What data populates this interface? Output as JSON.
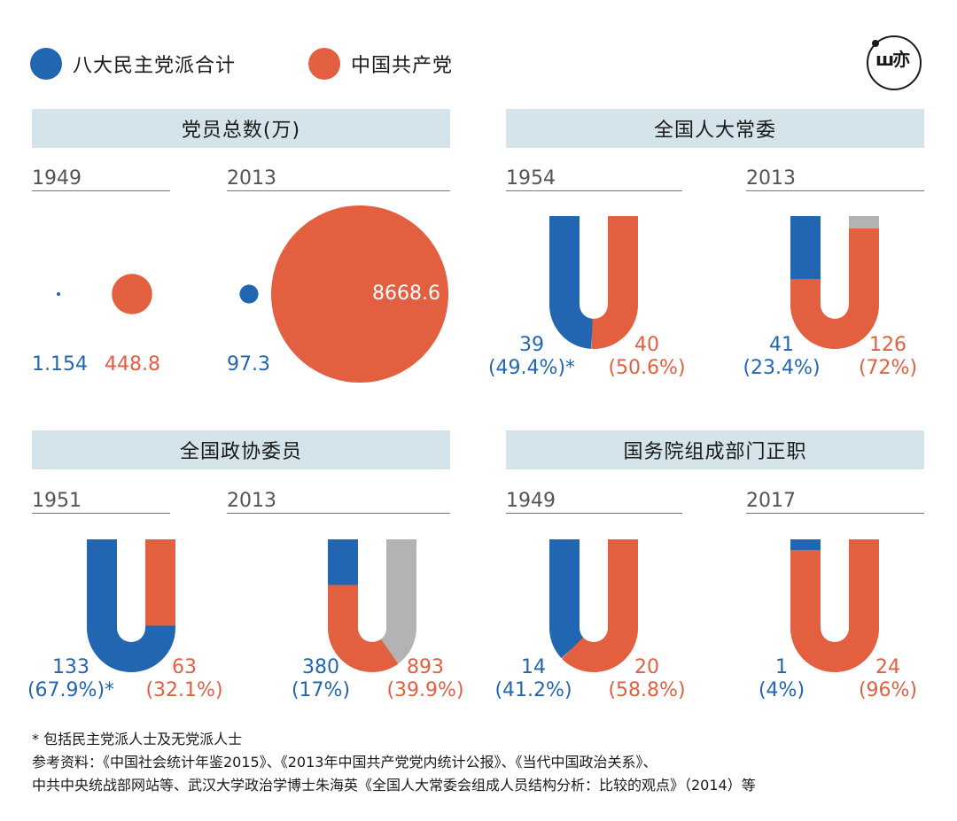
{
  "colors": {
    "dm": "#2266b2",
    "cpc": "#e25f40",
    "other": "#b3b3b3",
    "title_bg": "#d4e4ea"
  },
  "legend": {
    "dm_label": "八大民主党派合计",
    "cpc_label": "中国共产党"
  },
  "logo": {
    "icon": "logo-icon",
    "glyph": "ш亦"
  },
  "members": {
    "title": "党员总数(万)",
    "years": [
      "1949",
      "2013"
    ],
    "y1949": {
      "dm": "1.154",
      "cpc": "448.8"
    },
    "y2013": {
      "dm": "97.3",
      "cpc": "8668.6"
    }
  },
  "npcsc": {
    "title": "全国人大常委",
    "years": [
      "1954",
      "2013"
    ],
    "c1954": {
      "dm_count": "39",
      "dm_pct": "(49.4%)*",
      "cpc_count": "40",
      "cpc_pct": "(50.6%)"
    },
    "c2013": {
      "dm_count": "41",
      "dm_pct": "(23.4%)",
      "cpc_count": "126",
      "cpc_pct": "(72%)"
    }
  },
  "cppcc": {
    "title": "全国政协委员",
    "years": [
      "1951",
      "2013"
    ],
    "c1951": {
      "dm_count": "133",
      "dm_pct": "(67.9%)*",
      "cpc_count": "63",
      "cpc_pct": "(32.1%)"
    },
    "c2013": {
      "dm_count": "380",
      "dm_pct": "(17%)",
      "cpc_count": "893",
      "cpc_pct": "(39.9%)"
    }
  },
  "state_council": {
    "title": "国务院组成部门正职",
    "years": [
      "1949",
      "2017"
    ],
    "c1949": {
      "dm_count": "14",
      "dm_pct": "(41.2%)",
      "cpc_count": "20",
      "cpc_pct": "(58.8%)"
    },
    "c2017": {
      "dm_count": "1",
      "dm_pct": "(4%)",
      "cpc_count": "24",
      "cpc_pct": "(96%)"
    }
  },
  "footnotes": {
    "note": "* 包括民主党派人士及无党派人士",
    "sources_line1": "参考资料：《中国社会统计年鉴2015》、《2013年中国共产党党内统计公报》、《当代中国政治关系》、",
    "sources_line2": "中共中央统战部网站等、武汉大学政治学博士朱海英《全国人大常委会组成人员结构分析：比较的观点》（2014）等"
  },
  "chart_data": [
    {
      "type": "bubble",
      "title": "党员总数(万)",
      "unit": "万",
      "categories": [
        "1949",
        "2013"
      ],
      "series": [
        {
          "name": "八大民主党派合计",
          "values": [
            1.154,
            97.3
          ]
        },
        {
          "name": "中国共产党",
          "values": [
            448.8,
            8668.6
          ]
        }
      ]
    },
    {
      "type": "u-bar",
      "title": "全国人大常委",
      "year": "1954",
      "series": [
        {
          "name": "八大民主党派合计",
          "value": 39,
          "share": 49.4
        },
        {
          "name": "中国共产党",
          "value": 40,
          "share": 50.6
        }
      ]
    },
    {
      "type": "u-bar",
      "title": "全国人大常委",
      "year": "2013",
      "series": [
        {
          "name": "八大民主党派合计",
          "value": 41,
          "share": 23.4
        },
        {
          "name": "中国共产党",
          "value": 126,
          "share": 72
        }
      ]
    },
    {
      "type": "u-bar",
      "title": "全国政协委员",
      "year": "1951",
      "series": [
        {
          "name": "八大民主党派合计",
          "value": 133,
          "share": 67.9
        },
        {
          "name": "中国共产党",
          "value": 63,
          "share": 32.1
        }
      ]
    },
    {
      "type": "u-bar",
      "title": "全国政协委员",
      "year": "2013",
      "series": [
        {
          "name": "八大民主党派合计",
          "value": 380,
          "share": 17
        },
        {
          "name": "中国共产党",
          "value": 893,
          "share": 39.9
        }
      ]
    },
    {
      "type": "u-bar",
      "title": "国务院组成部门正职",
      "year": "1949",
      "series": [
        {
          "name": "八大民主党派合计",
          "value": 14,
          "share": 41.2
        },
        {
          "name": "中国共产党",
          "value": 20,
          "share": 58.8
        }
      ]
    },
    {
      "type": "u-bar",
      "title": "国务院组成部门正职",
      "year": "2017",
      "series": [
        {
          "name": "八大民主党派合计",
          "value": 1,
          "share": 4
        },
        {
          "name": "中国共产党",
          "value": 24,
          "share": 96
        }
      ]
    }
  ]
}
